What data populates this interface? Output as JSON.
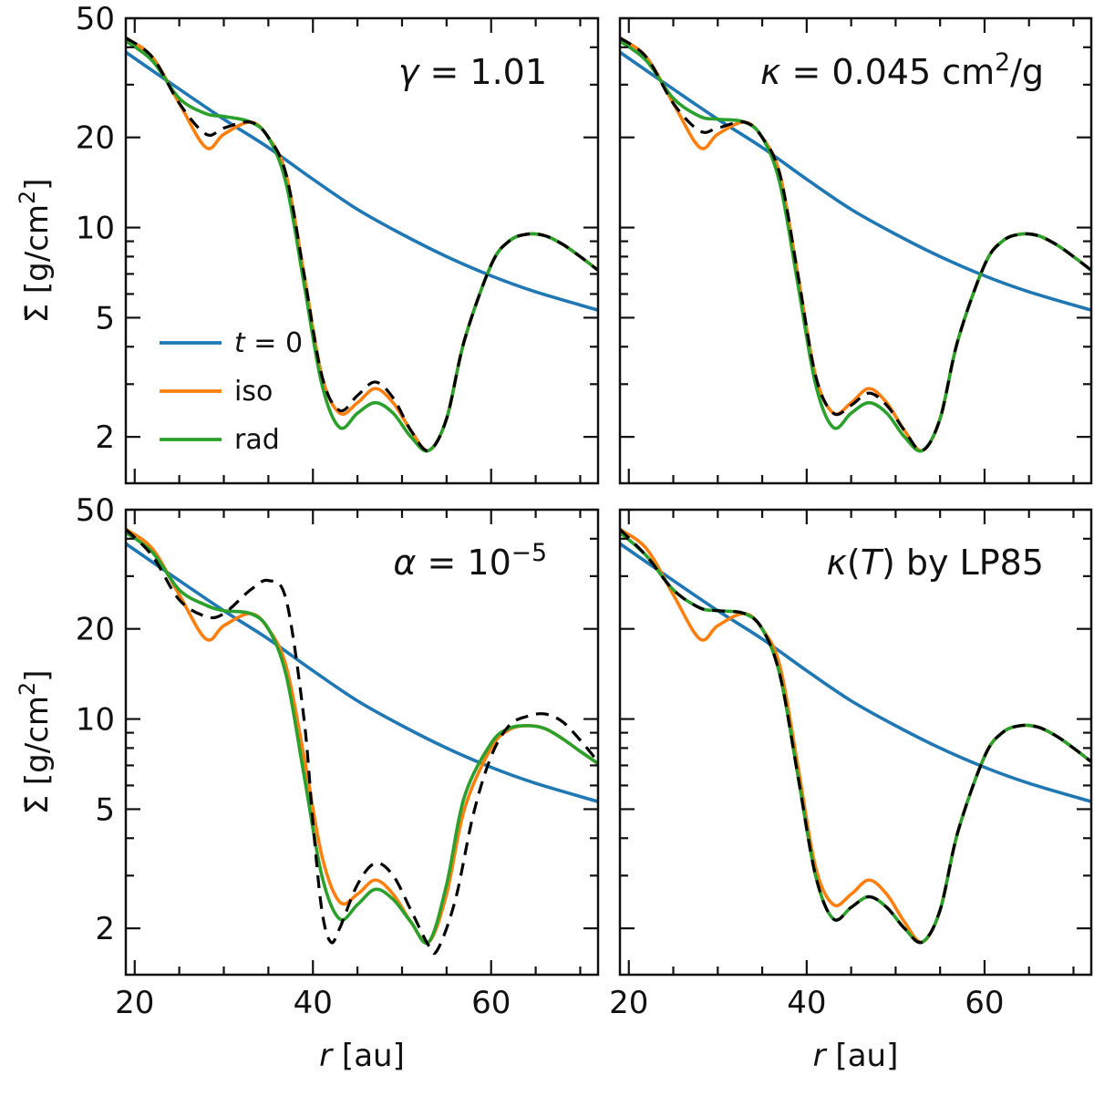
{
  "chart_data": {
    "type": "line",
    "layout": "2x2 grid, shared x-axis",
    "xlabel_italic": "r",
    "xlabel_unit": "[au]",
    "ylabel_symbol": "Σ̄",
    "ylabel_unit": "[g/cm²]",
    "xlim": [
      19,
      72
    ],
    "ylim": [
      1.4,
      50
    ],
    "yscale": "log",
    "xticks": [
      20,
      40,
      60
    ],
    "yticks": [
      2,
      5,
      10,
      20,
      50
    ],
    "colors": {
      "t0": "#1f77b4",
      "iso": "#ff7f0e",
      "rad": "#2ca02c",
      "dashed": "#000000"
    },
    "legend": {
      "placement": "top-left panel, lower-left",
      "entries": [
        {
          "label": "t = 0",
          "color": "#1f77b4"
        },
        {
          "label": "iso",
          "color": "#ff7f0e"
        },
        {
          "label": "rad",
          "color": "#2ca02c"
        }
      ]
    },
    "panels": [
      {
        "id": "top-left",
        "annotation": "γ = 1.01",
        "series": [
          {
            "name": "t = 0",
            "color": "#1f77b4",
            "style": "solid",
            "x": [
              19,
              25,
              30,
              35,
              40,
              45,
              50,
              55,
              60,
              65,
              72
            ],
            "y": [
              38.5,
              29,
              23,
              18.5,
              14.5,
              11.5,
              9.5,
              8,
              6.9,
              6.1,
              5.3
            ]
          },
          {
            "name": "iso",
            "color": "#ff7f0e",
            "style": "solid",
            "x": [
              19,
              22,
              25,
              28,
              30,
              33,
              35,
              37,
              39,
              41,
              43,
              45,
              47,
              49,
              51,
              53,
              55,
              57,
              60,
              62,
              64,
              66,
              68,
              70,
              72
            ],
            "y": [
              43,
              37,
              26,
              18.5,
              20.5,
              22.5,
              20,
              15,
              7,
              3.2,
              2.4,
              2.6,
              2.9,
              2.6,
              2.1,
              1.8,
              2.3,
              4.2,
              7.5,
              9.0,
              9.5,
              9.4,
              8.8,
              8.0,
              7.2
            ]
          },
          {
            "name": "rad",
            "color": "#2ca02c",
            "style": "solid",
            "x": [
              19,
              22,
              25,
              28,
              30,
              33,
              35,
              37,
              39,
              41,
              43,
              45,
              47,
              49,
              51,
              53,
              55,
              57,
              60,
              62,
              64,
              66,
              68,
              70,
              72
            ],
            "y": [
              42,
              36,
              27,
              24,
              23.5,
              22.5,
              20,
              14,
              6.5,
              3.0,
              2.15,
              2.4,
              2.6,
              2.4,
              2.0,
              1.8,
              2.3,
              4.2,
              7.5,
              9.0,
              9.5,
              9.4,
              8.8,
              8.0,
              7.2
            ]
          },
          {
            "name": "dashed",
            "color": "#000000",
            "style": "dashed",
            "x": [
              19,
              22,
              25,
              28,
              30,
              33,
              35,
              37,
              39,
              41,
              43,
              45,
              47,
              49,
              51,
              53,
              55,
              57,
              60,
              62,
              64,
              66,
              68,
              70,
              72
            ],
            "y": [
              43,
              37,
              26,
              20.5,
              21.5,
              22.5,
              20,
              15,
              7,
              3.2,
              2.45,
              2.75,
              3.05,
              2.7,
              2.1,
              1.8,
              2.3,
              4.2,
              7.5,
              9.0,
              9.5,
              9.4,
              8.8,
              8.0,
              7.2
            ]
          }
        ]
      },
      {
        "id": "top-right",
        "annotation": "κ = 0.045 cm²/g",
        "series": [
          {
            "name": "t = 0",
            "color": "#1f77b4",
            "style": "solid",
            "x": [
              19,
              25,
              30,
              35,
              40,
              45,
              50,
              55,
              60,
              65,
              72
            ],
            "y": [
              38.5,
              29,
              23,
              18.5,
              14.5,
              11.5,
              9.5,
              8,
              6.9,
              6.1,
              5.3
            ]
          },
          {
            "name": "iso",
            "color": "#ff7f0e",
            "style": "solid",
            "x": [
              19,
              22,
              25,
              28,
              30,
              33,
              35,
              37,
              39,
              41,
              43,
              45,
              47,
              49,
              51,
              53,
              55,
              57,
              60,
              62,
              64,
              66,
              68,
              70,
              72
            ],
            "y": [
              43,
              37,
              26,
              18.5,
              20.5,
              22.5,
              20,
              15,
              7,
              3.2,
              2.4,
              2.6,
              2.9,
              2.6,
              2.1,
              1.8,
              2.3,
              4.2,
              7.5,
              9.0,
              9.5,
              9.4,
              8.8,
              8.0,
              7.2
            ]
          },
          {
            "name": "rad",
            "color": "#2ca02c",
            "style": "solid",
            "x": [
              19,
              22,
              25,
              28,
              30,
              33,
              35,
              37,
              39,
              41,
              43,
              45,
              47,
              49,
              51,
              53,
              55,
              57,
              60,
              62,
              64,
              66,
              68,
              70,
              72
            ],
            "y": [
              42,
              36,
              27,
              23.5,
              23,
              22.5,
              20,
              14,
              6.5,
              3.0,
              2.15,
              2.4,
              2.6,
              2.4,
              2.0,
              1.8,
              2.3,
              4.2,
              7.5,
              9.0,
              9.5,
              9.4,
              8.8,
              8.0,
              7.2
            ]
          },
          {
            "name": "dashed",
            "color": "#000000",
            "style": "dashed",
            "x": [
              19,
              22,
              25,
              28,
              30,
              33,
              35,
              37,
              39,
              41,
              43,
              45,
              47,
              49,
              51,
              53,
              55,
              57,
              60,
              62,
              64,
              66,
              68,
              70,
              72
            ],
            "y": [
              43,
              37,
              26,
              21,
              21.5,
              22.5,
              20,
              15,
              7,
              3.2,
              2.4,
              2.55,
              2.8,
              2.55,
              2.1,
              1.8,
              2.3,
              4.2,
              7.5,
              9.0,
              9.5,
              9.4,
              8.8,
              8.0,
              7.2
            ]
          }
        ]
      },
      {
        "id": "bottom-left",
        "annotation": "α = 10⁻⁵",
        "series": [
          {
            "name": "t = 0",
            "color": "#1f77b4",
            "style": "solid",
            "x": [
              19,
              25,
              30,
              35,
              40,
              45,
              50,
              55,
              60,
              65,
              72
            ],
            "y": [
              38.5,
              29,
              23,
              18.5,
              14.5,
              11.5,
              9.5,
              8,
              6.9,
              6.1,
              5.3
            ]
          },
          {
            "name": "iso",
            "color": "#ff7f0e",
            "style": "solid",
            "x": [
              19,
              22,
              25,
              28,
              30,
              33,
              35,
              37,
              39,
              41,
              43,
              45,
              47,
              49,
              51,
              53,
              55,
              57,
              60,
              62,
              64,
              66,
              68,
              70,
              72
            ],
            "y": [
              43,
              37,
              26,
              18.5,
              20.5,
              22.5,
              20,
              15,
              7.5,
              3.5,
              2.45,
              2.6,
              2.9,
              2.6,
              2.1,
              1.8,
              2.6,
              5.0,
              8.0,
              9.2,
              9.5,
              9.3,
              8.6,
              7.8,
              7.1
            ]
          },
          {
            "name": "rad",
            "color": "#2ca02c",
            "style": "solid",
            "x": [
              19,
              22,
              25,
              28,
              30,
              33,
              35,
              37,
              39,
              41,
              43,
              45,
              47,
              49,
              51,
              53,
              55,
              57,
              60,
              62,
              64,
              66,
              68,
              70,
              72
            ],
            "y": [
              42,
              36,
              27,
              24,
              23,
              22.5,
              20,
              14,
              6.5,
              3.0,
              2.15,
              2.4,
              2.7,
              2.5,
              2.1,
              1.8,
              2.8,
              5.5,
              8.3,
              9.3,
              9.5,
              9.3,
              8.6,
              7.8,
              7.1
            ]
          },
          {
            "name": "dashed",
            "color": "#000000",
            "style": "dashed",
            "x": [
              19,
              22,
              25,
              28,
              30,
              33,
              35,
              37,
              39,
              40,
              41,
              42,
              43,
              45,
              47,
              49,
              51,
              53,
              54,
              56,
              58,
              60,
              62,
              64,
              66,
              68,
              70,
              72
            ],
            "y": [
              43,
              35,
              25,
              22,
              22.5,
              27,
              29,
              25,
              10,
              4.5,
              2.3,
              1.8,
              2.0,
              2.8,
              3.3,
              3.0,
              2.3,
              1.75,
              1.7,
              2.5,
              4.8,
              7.5,
              9.5,
              10.2,
              10.4,
              9.8,
              8.5,
              7.2
            ]
          }
        ]
      },
      {
        "id": "bottom-right",
        "annotation": "κ(T) by LP85",
        "series": [
          {
            "name": "t = 0",
            "color": "#1f77b4",
            "style": "solid",
            "x": [
              19,
              25,
              30,
              35,
              40,
              45,
              50,
              55,
              60,
              65,
              72
            ],
            "y": [
              38.5,
              29,
              23,
              18.5,
              14.5,
              11.5,
              9.5,
              8,
              6.9,
              6.1,
              5.3
            ]
          },
          {
            "name": "iso",
            "color": "#ff7f0e",
            "style": "solid",
            "x": [
              19,
              22,
              25,
              28,
              30,
              33,
              35,
              37,
              39,
              41,
              43,
              45,
              47,
              49,
              51,
              53,
              55,
              57,
              60,
              62,
              64,
              66,
              68,
              70,
              72
            ],
            "y": [
              43,
              37,
              26,
              18.5,
              20.5,
              22.5,
              20,
              15,
              7,
              3.2,
              2.4,
              2.6,
              2.9,
              2.6,
              2.1,
              1.8,
              2.3,
              4.2,
              7.5,
              9.0,
              9.5,
              9.4,
              8.8,
              8.0,
              7.2
            ]
          },
          {
            "name": "rad",
            "color": "#2ca02c",
            "style": "solid",
            "x": [
              19,
              22,
              25,
              28,
              30,
              33,
              35,
              37,
              39,
              41,
              43,
              45,
              47,
              49,
              51,
              53,
              55,
              57,
              60,
              62,
              64,
              66,
              68,
              70,
              72
            ],
            "y": [
              42,
              35,
              27,
              23.5,
              23,
              22.5,
              20,
              14,
              6.5,
              3.0,
              2.15,
              2.35,
              2.55,
              2.35,
              2.0,
              1.8,
              2.3,
              4.2,
              7.5,
              9.0,
              9.5,
              9.4,
              8.8,
              8.0,
              7.2
            ]
          },
          {
            "name": "dashed",
            "color": "#000000",
            "style": "dashed",
            "x": [
              19,
              22,
              25,
              28,
              30,
              33,
              35,
              37,
              39,
              41,
              43,
              45,
              47,
              49,
              51,
              53,
              55,
              57,
              60,
              62,
              64,
              66,
              68,
              70,
              72
            ],
            "y": [
              43,
              35,
              27,
              23.5,
              23,
              22.5,
              20,
              14,
              6.5,
              3.0,
              2.15,
              2.35,
              2.55,
              2.35,
              2.0,
              1.8,
              2.3,
              4.2,
              7.5,
              9.0,
              9.5,
              9.4,
              8.8,
              8.0,
              7.2
            ]
          }
        ]
      }
    ]
  }
}
